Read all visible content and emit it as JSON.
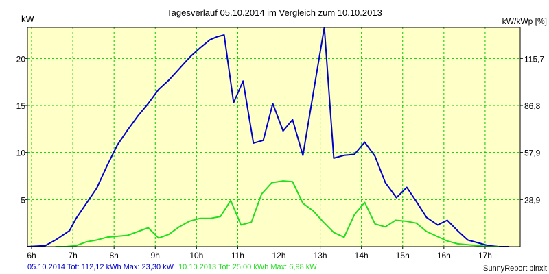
{
  "colors": {
    "background": "#FFFFC8",
    "grid": "#00CC00",
    "axis": "#000000",
    "series_2014": "#0000CC",
    "series_2013": "#22DD22",
    "footer_2014": "#0000CC",
    "footer_2013": "#22DD22",
    "footer_credit": "#000000"
  },
  "footer": {
    "left_2014": "05.10.2014 Tot: 112,12 kWh Max: 23,30 kW",
    "left_2013": "10.10.2013 Tot: 25,00 kWh Max: 6,98 kW",
    "credit": "SunnyReport pinxit"
  },
  "chart_data": {
    "type": "line",
    "title": "Tagesverlauf 05.10.2014 im Vergleich zum 10.10.2013",
    "ylabel_left": "kW",
    "ylabel_right": "kW/kWp [%]",
    "xlim": [
      5.9,
      17.85
    ],
    "ylim": [
      0,
      23.3
    ],
    "x_ticks": [
      6,
      7,
      8,
      9,
      10,
      11,
      12,
      13,
      14,
      15,
      16,
      17
    ],
    "x_tick_labels": [
      "6h",
      "7h",
      "8h",
      "9h",
      "10h",
      "11h",
      "12h",
      "13h",
      "14h",
      "15h",
      "16h",
      "17h"
    ],
    "y_ticks_left": [
      5,
      10,
      15,
      20
    ],
    "y_tick_labels_left": [
      "5",
      "10",
      "15",
      "20"
    ],
    "y_ticks_right": [
      5,
      10,
      15,
      20
    ],
    "y_tick_labels_right": [
      "28,9",
      "57,9",
      "86,8",
      "115,7"
    ],
    "grid": true,
    "series": [
      {
        "name": "05.10.2014",
        "color_key": "series_2014",
        "x": [
          5.9,
          6.33,
          6.58,
          6.92,
          7.08,
          7.33,
          7.58,
          7.83,
          8.08,
          8.33,
          8.58,
          8.83,
          9.08,
          9.33,
          9.58,
          9.83,
          10.08,
          10.33,
          10.5,
          10.67,
          10.9,
          11.13,
          11.38,
          11.62,
          11.85,
          12.1,
          12.33,
          12.58,
          12.85,
          13.1,
          13.33,
          13.58,
          13.83,
          14.08,
          14.33,
          14.58,
          14.85,
          15.1,
          15.33,
          15.58,
          15.85,
          16.08,
          16.33,
          16.58,
          16.83,
          17.08,
          17.33,
          17.58
        ],
        "y": [
          0.0,
          0.1,
          0.7,
          1.7,
          3.0,
          4.6,
          6.2,
          8.6,
          10.8,
          12.4,
          13.9,
          15.2,
          16.7,
          17.7,
          18.9,
          20.1,
          21.1,
          22.0,
          22.3,
          22.5,
          15.3,
          17.6,
          11.0,
          11.3,
          15.2,
          12.3,
          13.5,
          9.7,
          16.8,
          23.3,
          9.4,
          9.7,
          9.8,
          11.1,
          9.6,
          6.8,
          5.2,
          6.3,
          4.8,
          3.1,
          2.3,
          2.8,
          1.7,
          0.7,
          0.4,
          0.1,
          0.0,
          0.0
        ]
      },
      {
        "name": "10.10.2013",
        "color_key": "series_2013",
        "x": [
          6.58,
          6.83,
          7.08,
          7.33,
          7.58,
          7.83,
          8.08,
          8.33,
          8.58,
          8.83,
          9.08,
          9.33,
          9.58,
          9.83,
          10.08,
          10.33,
          10.58,
          10.83,
          11.08,
          11.33,
          11.58,
          11.83,
          12.1,
          12.33,
          12.58,
          12.83,
          13.08,
          13.33,
          13.58,
          13.83,
          14.08,
          14.33,
          14.58,
          14.83,
          15.08,
          15.33,
          15.58,
          15.83,
          16.08,
          16.33,
          16.58,
          16.83,
          17.08,
          17.33
        ],
        "y": [
          0.0,
          0.0,
          0.1,
          0.5,
          0.7,
          1.0,
          1.1,
          1.2,
          1.6,
          2.0,
          0.9,
          1.3,
          2.1,
          2.7,
          3.0,
          3.0,
          3.2,
          4.9,
          2.3,
          2.6,
          5.6,
          6.8,
          6.98,
          6.9,
          4.6,
          3.8,
          2.6,
          1.5,
          1.0,
          3.4,
          4.7,
          2.4,
          2.1,
          2.8,
          2.7,
          2.5,
          1.6,
          1.1,
          0.6,
          0.3,
          0.2,
          0.1,
          0.0,
          0.0
        ]
      }
    ]
  }
}
